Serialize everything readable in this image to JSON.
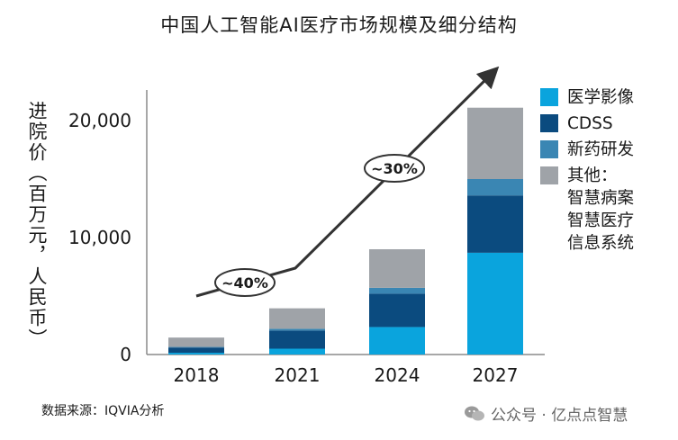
{
  "chart_data": {
    "type": "bar",
    "stacked": true,
    "title": "中国人工智能AI医疗市场规模及细分结构",
    "ylabel": "进院价（百万元，人民币）",
    "xlabel": "",
    "categories": [
      "2018",
      "2021",
      "2024",
      "2027"
    ],
    "ylim": [
      0,
      22000
    ],
    "yticks": [
      0,
      10000,
      20000
    ],
    "ytick_labels": [
      "0",
      "10,000",
      "20,000"
    ],
    "series": [
      {
        "name": "医学影像",
        "color": "#0aa4dd",
        "values": [
          150,
          500,
          2350,
          8700
        ]
      },
      {
        "name": "CDSS",
        "color": "#0b4b7f",
        "values": [
          450,
          1550,
          2850,
          4900
        ]
      },
      {
        "name": "新药研发",
        "color": "#3a86b3",
        "values": [
          50,
          150,
          500,
          1400
        ]
      },
      {
        "name": "其他：\n智慧病案\n智慧医疗\n信息系统",
        "color": "#9fa3a8",
        "values": [
          800,
          1750,
          3300,
          6100
        ]
      }
    ],
    "annotations": [
      {
        "text": "~40%",
        "between": [
          "2018",
          "2021"
        ]
      },
      {
        "text": "~30%",
        "between": [
          "2021",
          "2027"
        ]
      }
    ],
    "legend_position": "right",
    "grid": false
  },
  "source_text": "数据来源：IQVIA分析",
  "watermark_text": "公众号 · 亿点点智慧"
}
